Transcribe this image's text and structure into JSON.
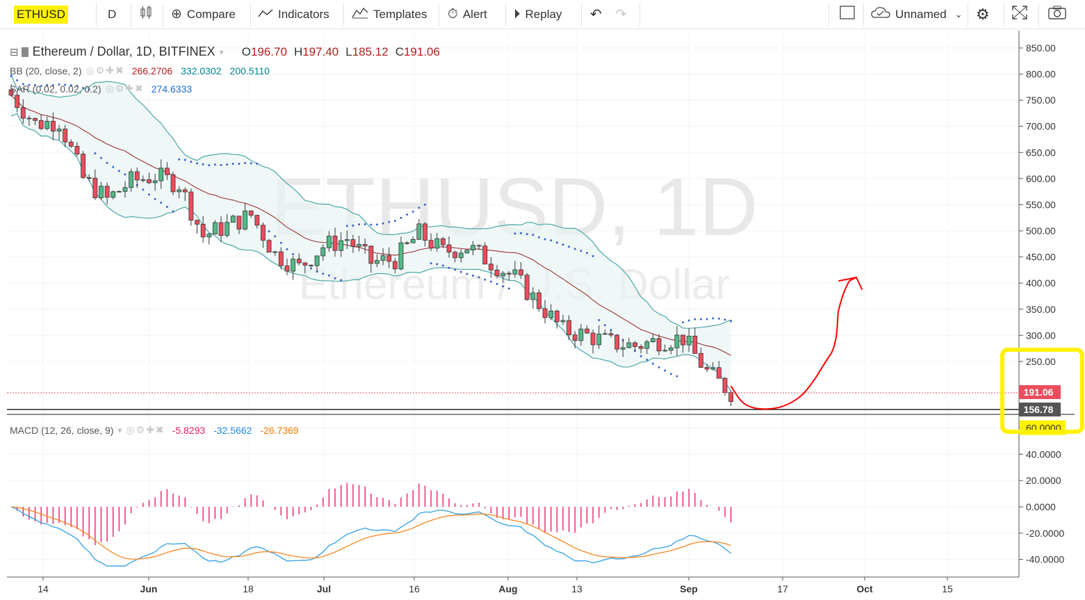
{
  "toolbar": {
    "symbol": "ETHUSD",
    "interval": "D",
    "compare_label": "Compare",
    "indicators_label": "Indicators",
    "templates_label": "Templates",
    "alert_label": "Alert",
    "replay_label": "Replay",
    "layout_name": "Unnamed",
    "icons": [
      "candles-icon",
      "compare-plus-icon",
      "indicators-wave-icon",
      "templates-icon",
      "alert-clock-icon",
      "replay-icon",
      "undo-icon",
      "redo-icon",
      "fullscreen-icon",
      "cloud-icon",
      "chevron-down-icon",
      "settings-gear-icon",
      "expand-icon",
      "camera-icon"
    ]
  },
  "legend": {
    "title": "Ethereum / Dollar, 1D, BITFINEX",
    "o_label": "O",
    "o": "196.70",
    "h_label": "H",
    "h": "197.40",
    "l_label": "L",
    "l": "185.12",
    "c_label": "C",
    "c": "191.06",
    "bb_label": "BB (20, close, 2)",
    "bb_values": [
      "266.2706",
      "332.0302",
      "200.5110"
    ],
    "sar_label": "SAR (0.02, 0.02, 0.2)",
    "sar_value": "274.6333",
    "macd_label": "MACD (12, 26, close, 9)",
    "macd_values": [
      "-5.8293",
      "-32.5662",
      "-26.7369"
    ]
  },
  "watermark": {
    "line1": "ETHUSD, 1D",
    "line2": "Ethereum / U.S. Dollar"
  },
  "price_axis": {
    "ticks": [
      "850.00",
      "800.00",
      "750.00",
      "700.00",
      "650.00",
      "600.00",
      "550.00",
      "500.00",
      "450.00",
      "400.00",
      "350.00",
      "300.00",
      "250.00"
    ],
    "last_price": "191.06",
    "level_label": "156.78"
  },
  "macd_axis": {
    "ticks": [
      "60.0000",
      "40.0000",
      "20.0000",
      "0.0000",
      "-20.0000",
      "-40.0000"
    ]
  },
  "time_axis": {
    "ticks": [
      "14",
      "Jun",
      "18",
      "Jul",
      "16",
      "Aug",
      "13",
      "Sep",
      "17",
      "Oct",
      "15"
    ]
  },
  "colors": {
    "up": "#53b987",
    "down": "#eb4d5c",
    "bb_band": "#4aa5a8",
    "bb_basis": "#a1423f",
    "sar": "#3c65c8",
    "macd_line": "#2f9ee5",
    "signal_line": "#f6851f",
    "histogram": "#e91e63",
    "highlight": "#fff200",
    "annotation": "#ff0000"
  },
  "chart_data": {
    "type": "candlestick",
    "series_price_points": [
      [
        "2018-05-12",
        760
      ],
      [
        "2018-05-16",
        705
      ],
      [
        "2018-05-20",
        710
      ],
      [
        "2018-05-24",
        600
      ],
      [
        "2018-05-28",
        560
      ],
      [
        "2018-06-01",
        595
      ],
      [
        "2018-06-05",
        605
      ],
      [
        "2018-06-09",
        590
      ],
      [
        "2018-06-13",
        490
      ],
      [
        "2018-06-17",
        510
      ],
      [
        "2018-06-21",
        530
      ],
      [
        "2018-06-25",
        455
      ],
      [
        "2018-06-29",
        430
      ],
      [
        "2018-07-03",
        470
      ],
      [
        "2018-07-07",
        485
      ],
      [
        "2018-07-11",
        440
      ],
      [
        "2018-07-15",
        445
      ],
      [
        "2018-07-19",
        495
      ],
      [
        "2018-07-23",
        460
      ],
      [
        "2018-07-27",
        470
      ],
      [
        "2018-07-31",
        440
      ],
      [
        "2018-08-04",
        410
      ],
      [
        "2018-08-08",
        360
      ],
      [
        "2018-08-12",
        310
      ],
      [
        "2018-08-16",
        300
      ],
      [
        "2018-08-20",
        285
      ],
      [
        "2018-08-24",
        280
      ],
      [
        "2018-08-28",
        290
      ],
      [
        "2018-09-01",
        295
      ],
      [
        "2018-09-05",
        230
      ],
      [
        "2018-09-09",
        191
      ]
    ],
    "last": {
      "open": 196.7,
      "high": 197.4,
      "low": 185.12,
      "close": 191.06
    },
    "bb": {
      "basis": 266.2706,
      "upper": 332.0302,
      "lower": 200.511
    },
    "sar": 274.6333,
    "macd": {
      "histogram": -5.8293,
      "macd": -32.5662,
      "signal": -26.7369
    },
    "horizontal_level": 156.78
  }
}
